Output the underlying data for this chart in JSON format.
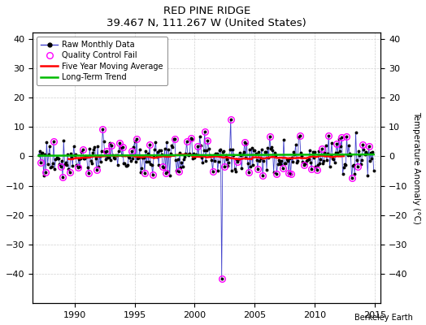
{
  "title": "RED PINE RIDGE",
  "subtitle": "39.467 N, 111.267 W (United States)",
  "ylabel": "Temperature Anomaly (°C)",
  "xlabel_note": "Berkeley Earth",
  "xlim": [
    1986.5,
    2015.5
  ],
  "ylim": [
    -50,
    42
  ],
  "yticks_left": [
    -40,
    -30,
    -20,
    -10,
    0,
    10,
    20,
    30,
    40
  ],
  "yticks_right": [
    -40,
    -30,
    -20,
    -10,
    0,
    10,
    20,
    30,
    40
  ],
  "xticks": [
    1990,
    1995,
    2000,
    2005,
    2010,
    2015
  ],
  "bg_color": "#ffffff",
  "grid_color": "#d0d0d0",
  "raw_line_color": "#4444cc",
  "raw_marker_color": "#000000",
  "qc_fail_color": "#ff00ff",
  "moving_avg_color": "#ff0000",
  "trend_color": "#00bb00",
  "spike_x": 2002.33,
  "spike_y": -41.5,
  "spike_y_top": 12.5
}
